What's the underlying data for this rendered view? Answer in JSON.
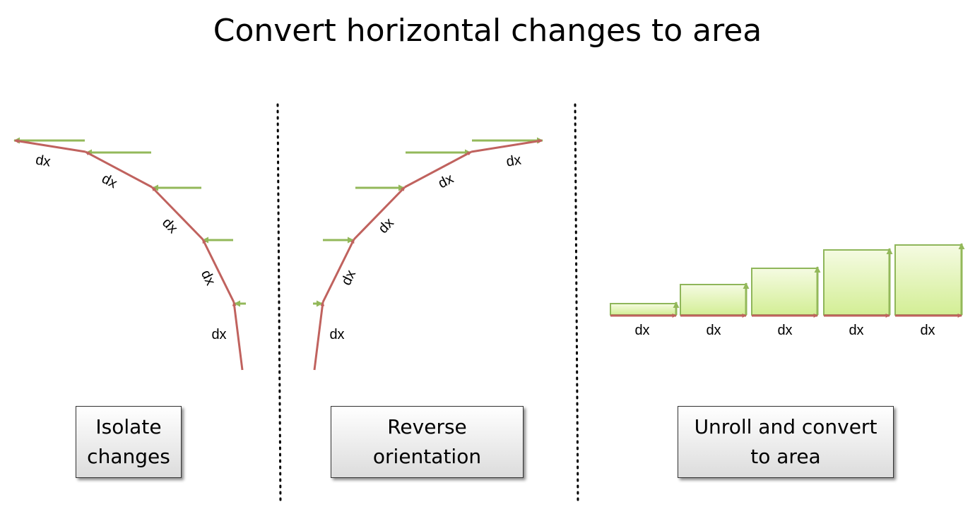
{
  "title": "Convert horizontal changes to area",
  "colors": {
    "path": "#c0625e",
    "horizontal": "#93b85a",
    "area_fill_top": "#f5fbe2",
    "area_fill_bottom": "#d3ee95",
    "area_stroke": "#8fb65a"
  },
  "segment_label": "dx",
  "panels": [
    {
      "id": "isolate",
      "caption_lines": [
        "Isolate",
        "changes"
      ]
    },
    {
      "id": "reverse",
      "caption_lines": [
        "Reverse",
        "orientation"
      ]
    },
    {
      "id": "unroll",
      "caption_lines": [
        "Unroll and convert",
        "to area"
      ]
    }
  ]
}
